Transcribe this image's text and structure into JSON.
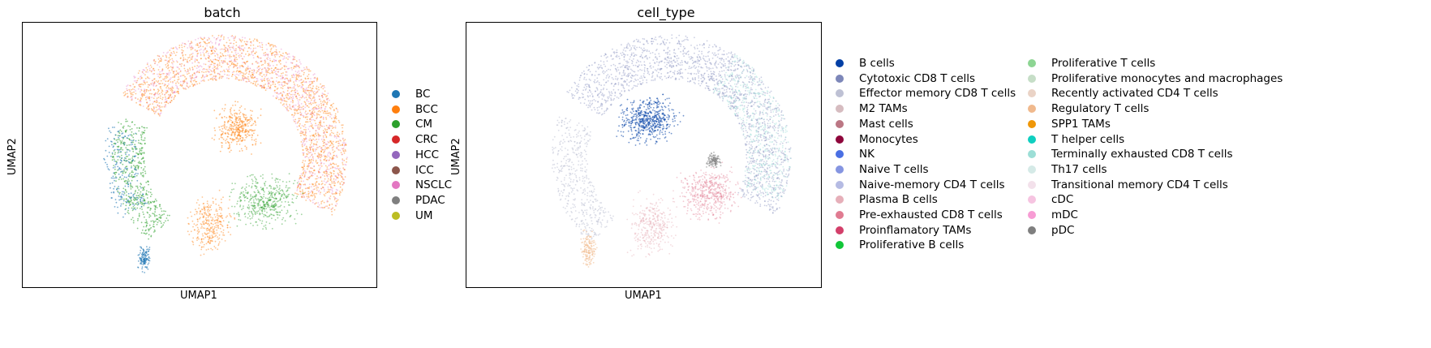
{
  "panels": [
    {
      "title": "batch",
      "xlabel": "UMAP1",
      "ylabel": "UMAP2",
      "legend": [
        {
          "label": "BC",
          "color": "#1f77b4"
        },
        {
          "label": "BCC",
          "color": "#ff7f0e"
        },
        {
          "label": "CM",
          "color": "#2ca02c"
        },
        {
          "label": "CRC",
          "color": "#d62728"
        },
        {
          "label": "HCC",
          "color": "#9467bd"
        },
        {
          "label": "ICC",
          "color": "#8c564b"
        },
        {
          "label": "NSCLC",
          "color": "#e377c2"
        },
        {
          "label": "PDAC",
          "color": "#7f7f7f"
        },
        {
          "label": "UM",
          "color": "#bcbd22"
        }
      ]
    },
    {
      "title": "cell_type",
      "xlabel": "UMAP1",
      "ylabel": "UMAP2",
      "legend": [
        {
          "label": "B cells",
          "color": "#023fa5"
        },
        {
          "label": "Cytotoxic CD8 T cells",
          "color": "#7d87b9"
        },
        {
          "label": "Effector memory CD8 T cells",
          "color": "#bec1d4"
        },
        {
          "label": "M2 TAMs",
          "color": "#d6bcc0"
        },
        {
          "label": "Mast cells",
          "color": "#bb7784"
        },
        {
          "label": "Monocytes",
          "color": "#8e063b"
        },
        {
          "label": "NK",
          "color": "#4a6fe3"
        },
        {
          "label": "Naive T cells",
          "color": "#8595e1"
        },
        {
          "label": "Naive-memory CD4 T cells",
          "color": "#b5bbe3"
        },
        {
          "label": "Plasma B cells",
          "color": "#e6afb9"
        },
        {
          "label": "Pre-exhausted CD8 T cells",
          "color": "#e07b91"
        },
        {
          "label": "Proinflamatory TAMs",
          "color": "#d33f6a"
        },
        {
          "label": "Proliferative B cells",
          "color": "#11c638"
        },
        {
          "label": "Proliferative T cells",
          "color": "#8dd593"
        },
        {
          "label": "Proliferative monocytes and macrophages",
          "color": "#c6dec7"
        },
        {
          "label": "Recently activated CD4 T cells",
          "color": "#ead3c6"
        },
        {
          "label": "Regulatory T cells",
          "color": "#f0b98d"
        },
        {
          "label": "SPP1 TAMs",
          "color": "#ef9708"
        },
        {
          "label": "T helper cells",
          "color": "#0fcfc0"
        },
        {
          "label": "Terminally exhausted CD8 T cells",
          "color": "#9cded6"
        },
        {
          "label": "Th17 cells",
          "color": "#d5eae7"
        },
        {
          "label": "Transitional memory CD4 T cells",
          "color": "#f3e1eb"
        },
        {
          "label": "cDC",
          "color": "#f6c4e1"
        },
        {
          "label": "mDC",
          "color": "#f79cd4"
        },
        {
          "label": "pDC",
          "color": "#7f7f7f"
        }
      ]
    }
  ],
  "chart_data": [
    {
      "type": "scatter",
      "title": "batch",
      "xlabel": "UMAP1",
      "ylabel": "UMAP2",
      "grid": false,
      "legend_position": "right",
      "series": [
        {
          "name": "BC"
        },
        {
          "name": "BCC"
        },
        {
          "name": "CM"
        },
        {
          "name": "CRC"
        },
        {
          "name": "HCC"
        },
        {
          "name": "ICC"
        },
        {
          "name": "NSCLC"
        },
        {
          "name": "PDAC"
        },
        {
          "name": "UM"
        }
      ]
    },
    {
      "type": "scatter",
      "title": "cell_type",
      "xlabel": "UMAP1",
      "ylabel": "UMAP2",
      "grid": false,
      "legend_position": "right",
      "series": [
        {
          "name": "B cells"
        },
        {
          "name": "Cytotoxic CD8 T cells"
        },
        {
          "name": "Effector memory CD8 T cells"
        },
        {
          "name": "M2 TAMs"
        },
        {
          "name": "Mast cells"
        },
        {
          "name": "Monocytes"
        },
        {
          "name": "NK"
        },
        {
          "name": "Naive T cells"
        },
        {
          "name": "Naive-memory CD4 T cells"
        },
        {
          "name": "Plasma B cells"
        },
        {
          "name": "Pre-exhausted CD8 T cells"
        },
        {
          "name": "Proinflamatory TAMs"
        },
        {
          "name": "Proliferative B cells"
        },
        {
          "name": "Proliferative T cells"
        },
        {
          "name": "Proliferative monocytes and macrophages"
        },
        {
          "name": "Recently activated CD4 T cells"
        },
        {
          "name": "Regulatory T cells"
        },
        {
          "name": "SPP1 TAMs"
        },
        {
          "name": "T helper cells"
        },
        {
          "name": "Terminally exhausted CD8 T cells"
        },
        {
          "name": "Th17 cells"
        },
        {
          "name": "Transitional memory CD4 T cells"
        },
        {
          "name": "cDC"
        },
        {
          "name": "mDC"
        },
        {
          "name": "pDC"
        }
      ]
    }
  ]
}
